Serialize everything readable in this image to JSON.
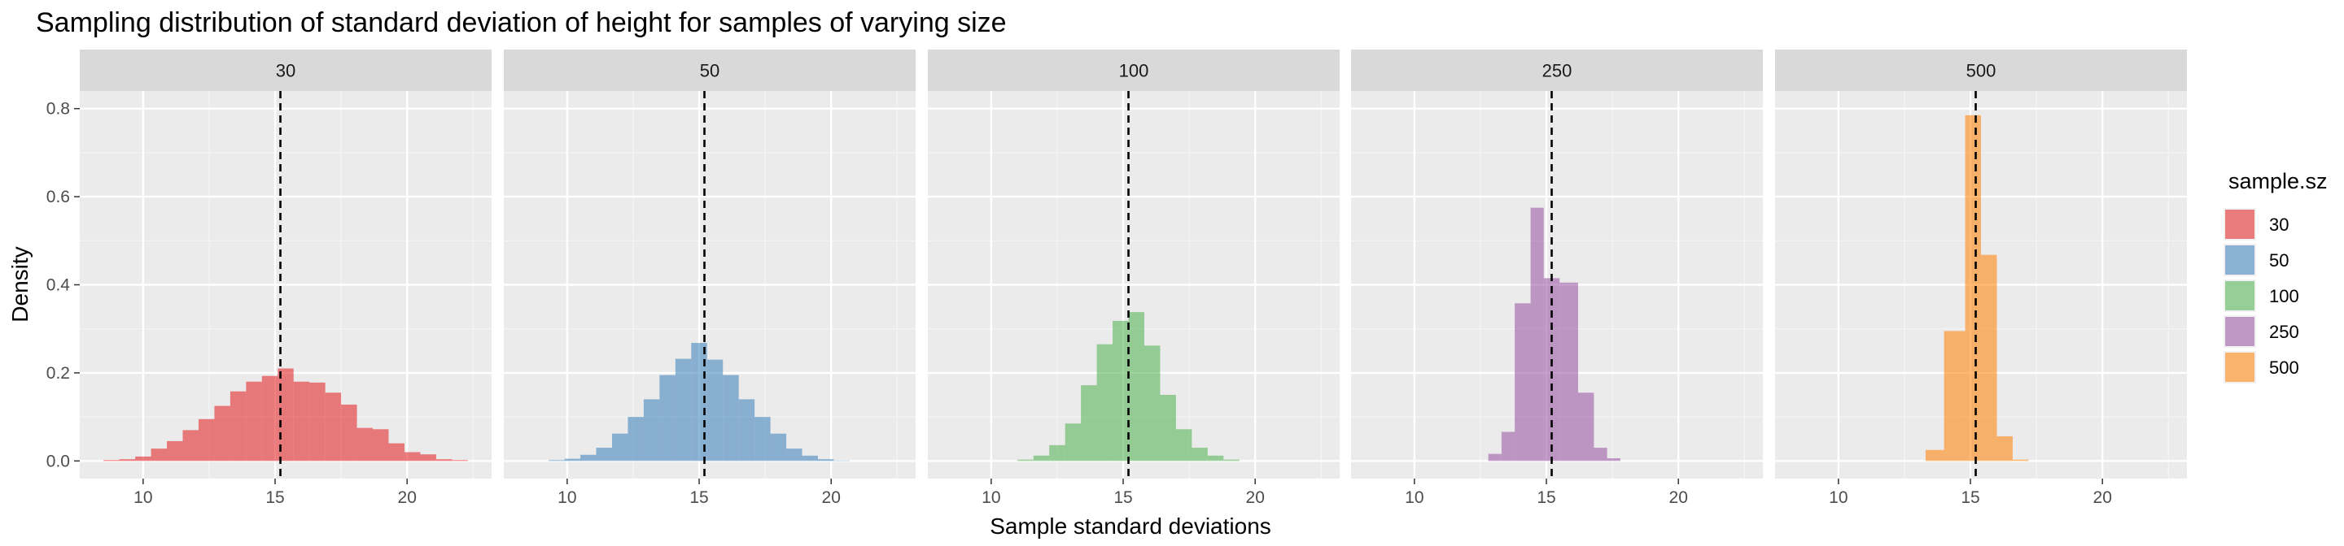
{
  "chart_data": {
    "type": "histogram-facets",
    "title": "Sampling distribution of standard deviation of height for samples of varying size",
    "xlabel": "Sample standard deviations",
    "ylabel": "Density",
    "xlim": [
      7.6,
      23.2
    ],
    "ylim": [
      -0.04,
      0.84
    ],
    "x_ticks": [
      10,
      15,
      20
    ],
    "y_ticks": [
      0.0,
      0.2,
      0.4,
      0.6,
      0.8
    ],
    "y_tick_labels": [
      "0.0",
      "0.2",
      "0.4",
      "0.6",
      "0.8"
    ],
    "reference_line_x": 15.2,
    "legend": {
      "title": "sample.sz",
      "entries": [
        {
          "label": "30",
          "color": "#e41a1c"
        },
        {
          "label": "50",
          "color": "#377eb8"
        },
        {
          "label": "100",
          "color": "#4daf4a"
        },
        {
          "label": "250",
          "color": "#984ea3"
        },
        {
          "label": "500",
          "color": "#ff7f00"
        }
      ]
    },
    "panels": [
      {
        "label": "30",
        "color": "#e41a1c",
        "bins": [
          {
            "x0": 8.5,
            "x1": 9.1,
            "density": 0.002
          },
          {
            "x0": 9.1,
            "x1": 9.7,
            "density": 0.004
          },
          {
            "x0": 9.7,
            "x1": 10.3,
            "density": 0.01
          },
          {
            "x0": 10.3,
            "x1": 10.9,
            "density": 0.028
          },
          {
            "x0": 10.9,
            "x1": 11.5,
            "density": 0.045
          },
          {
            "x0": 11.5,
            "x1": 12.1,
            "density": 0.07
          },
          {
            "x0": 12.1,
            "x1": 12.7,
            "density": 0.095
          },
          {
            "x0": 12.7,
            "x1": 13.3,
            "density": 0.125
          },
          {
            "x0": 13.3,
            "x1": 13.9,
            "density": 0.158
          },
          {
            "x0": 13.9,
            "x1": 14.5,
            "density": 0.18
          },
          {
            "x0": 14.5,
            "x1": 15.1,
            "density": 0.193
          },
          {
            "x0": 15.1,
            "x1": 15.7,
            "density": 0.21
          },
          {
            "x0": 15.7,
            "x1": 16.3,
            "density": 0.18
          },
          {
            "x0": 16.3,
            "x1": 16.9,
            "density": 0.178
          },
          {
            "x0": 16.9,
            "x1": 17.5,
            "density": 0.155
          },
          {
            "x0": 17.5,
            "x1": 18.1,
            "density": 0.128
          },
          {
            "x0": 18.1,
            "x1": 18.7,
            "density": 0.075
          },
          {
            "x0": 18.7,
            "x1": 19.3,
            "density": 0.072
          },
          {
            "x0": 19.3,
            "x1": 19.9,
            "density": 0.04
          },
          {
            "x0": 19.9,
            "x1": 20.5,
            "density": 0.02
          },
          {
            "x0": 20.5,
            "x1": 21.1,
            "density": 0.015
          },
          {
            "x0": 21.1,
            "x1": 21.7,
            "density": 0.004
          },
          {
            "x0": 21.7,
            "x1": 22.3,
            "density": 0.002
          }
        ]
      },
      {
        "label": "50",
        "color": "#377eb8",
        "bins": [
          {
            "x0": 9.3,
            "x1": 9.9,
            "density": 0.002
          },
          {
            "x0": 9.9,
            "x1": 10.5,
            "density": 0.005
          },
          {
            "x0": 10.5,
            "x1": 11.1,
            "density": 0.014
          },
          {
            "x0": 11.1,
            "x1": 11.7,
            "density": 0.03
          },
          {
            "x0": 11.7,
            "x1": 12.3,
            "density": 0.062
          },
          {
            "x0": 12.3,
            "x1": 12.9,
            "density": 0.1
          },
          {
            "x0": 12.9,
            "x1": 13.5,
            "density": 0.14
          },
          {
            "x0": 13.5,
            "x1": 14.1,
            "density": 0.195
          },
          {
            "x0": 14.1,
            "x1": 14.7,
            "density": 0.232
          },
          {
            "x0": 14.7,
            "x1": 15.3,
            "density": 0.268
          },
          {
            "x0": 15.3,
            "x1": 15.9,
            "density": 0.23
          },
          {
            "x0": 15.9,
            "x1": 16.5,
            "density": 0.195
          },
          {
            "x0": 16.5,
            "x1": 17.1,
            "density": 0.14
          },
          {
            "x0": 17.1,
            "x1": 17.7,
            "density": 0.1
          },
          {
            "x0": 17.7,
            "x1": 18.3,
            "density": 0.062
          },
          {
            "x0": 18.3,
            "x1": 18.9,
            "density": 0.028
          },
          {
            "x0": 18.9,
            "x1": 19.5,
            "density": 0.012
          },
          {
            "x0": 19.5,
            "x1": 20.1,
            "density": 0.004
          },
          {
            "x0": 20.1,
            "x1": 20.7,
            "density": 0.001
          }
        ]
      },
      {
        "label": "100",
        "color": "#4daf4a",
        "bins": [
          {
            "x0": 11.0,
            "x1": 11.6,
            "density": 0.003
          },
          {
            "x0": 11.6,
            "x1": 12.2,
            "density": 0.012
          },
          {
            "x0": 12.2,
            "x1": 12.8,
            "density": 0.036
          },
          {
            "x0": 12.8,
            "x1": 13.4,
            "density": 0.085
          },
          {
            "x0": 13.4,
            "x1": 14.0,
            "density": 0.172
          },
          {
            "x0": 14.0,
            "x1": 14.6,
            "density": 0.265
          },
          {
            "x0": 14.6,
            "x1": 15.2,
            "density": 0.318
          },
          {
            "x0": 15.2,
            "x1": 15.8,
            "density": 0.338
          },
          {
            "x0": 15.8,
            "x1": 16.4,
            "density": 0.262
          },
          {
            "x0": 16.4,
            "x1": 17.0,
            "density": 0.15
          },
          {
            "x0": 17.0,
            "x1": 17.6,
            "density": 0.072
          },
          {
            "x0": 17.6,
            "x1": 18.2,
            "density": 0.03
          },
          {
            "x0": 18.2,
            "x1": 18.8,
            "density": 0.012
          },
          {
            "x0": 18.8,
            "x1": 19.4,
            "density": 0.003
          }
        ]
      },
      {
        "label": "250",
        "color": "#984ea3",
        "bins": [
          {
            "x0": 12.8,
            "x1": 13.3,
            "density": 0.016
          },
          {
            "x0": 13.3,
            "x1": 13.8,
            "density": 0.066
          },
          {
            "x0": 13.8,
            "x1": 14.4,
            "density": 0.358
          },
          {
            "x0": 14.4,
            "x1": 14.9,
            "density": 0.575
          },
          {
            "x0": 14.9,
            "x1": 15.5,
            "density": 0.415
          },
          {
            "x0": 15.5,
            "x1": 16.2,
            "density": 0.405
          },
          {
            "x0": 16.2,
            "x1": 16.8,
            "density": 0.155
          },
          {
            "x0": 16.8,
            "x1": 17.3,
            "density": 0.03
          },
          {
            "x0": 17.3,
            "x1": 17.8,
            "density": 0.006
          }
        ]
      },
      {
        "label": "500",
        "color": "#ff7f00",
        "bins": [
          {
            "x0": 13.3,
            "x1": 14.0,
            "density": 0.025
          },
          {
            "x0": 14.0,
            "x1": 14.8,
            "density": 0.295
          },
          {
            "x0": 14.8,
            "x1": 15.4,
            "density": 0.785
          },
          {
            "x0": 15.4,
            "x1": 16.0,
            "density": 0.468
          },
          {
            "x0": 16.0,
            "x1": 16.6,
            "density": 0.056
          },
          {
            "x0": 16.6,
            "x1": 17.2,
            "density": 0.003
          }
        ]
      }
    ]
  }
}
